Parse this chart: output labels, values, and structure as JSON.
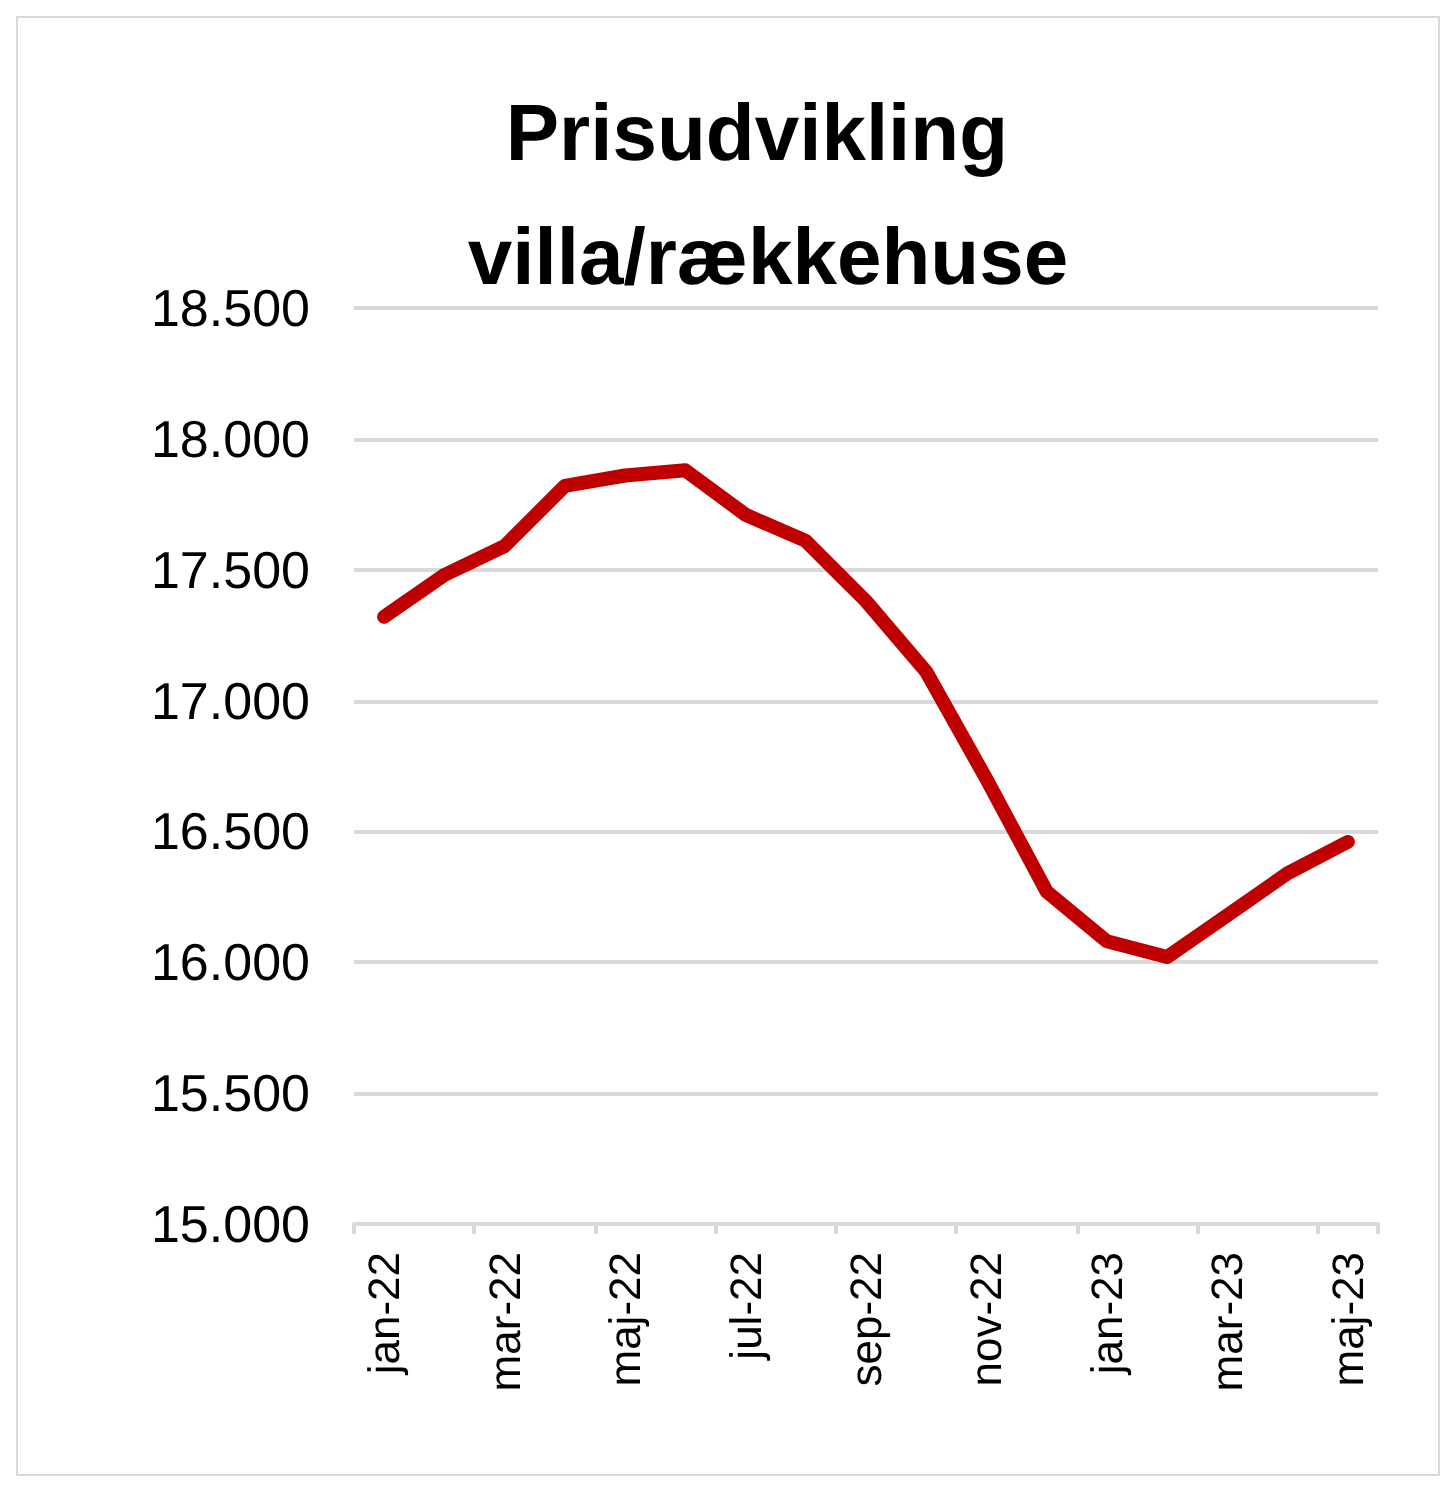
{
  "chart_data": {
    "type": "line",
    "title": "Prisudvikling villa/rækkehuse",
    "categories": [
      "jan-22",
      null,
      "mar-22",
      null,
      "maj-22",
      null,
      "jul-22",
      null,
      "sep-22",
      null,
      "nov-22",
      null,
      "jan-23",
      null,
      "mar-23",
      null,
      "maj-23"
    ],
    "series": [
      {
        "color": "#c00000",
        "values": [
          17320,
          17480,
          17590,
          17820,
          17860,
          17880,
          17710,
          17610,
          17380,
          17110,
          16700,
          16270,
          16080,
          16020,
          16180,
          16340,
          16460
        ]
      }
    ],
    "ylim": [
      15000,
      18500
    ],
    "yticks": [
      {
        "value": 15000,
        "label": "15.000"
      },
      {
        "value": 15500,
        "label": "15.500"
      },
      {
        "value": 16000,
        "label": "16.000"
      },
      {
        "value": 16500,
        "label": "16.500"
      },
      {
        "value": 17000,
        "label": "17.000"
      },
      {
        "value": 17500,
        "label": "17.500"
      },
      {
        "value": 18000,
        "label": "18.000"
      },
      {
        "value": 18500,
        "label": "18.500"
      }
    ],
    "grid": "y",
    "line_style": "solid"
  }
}
